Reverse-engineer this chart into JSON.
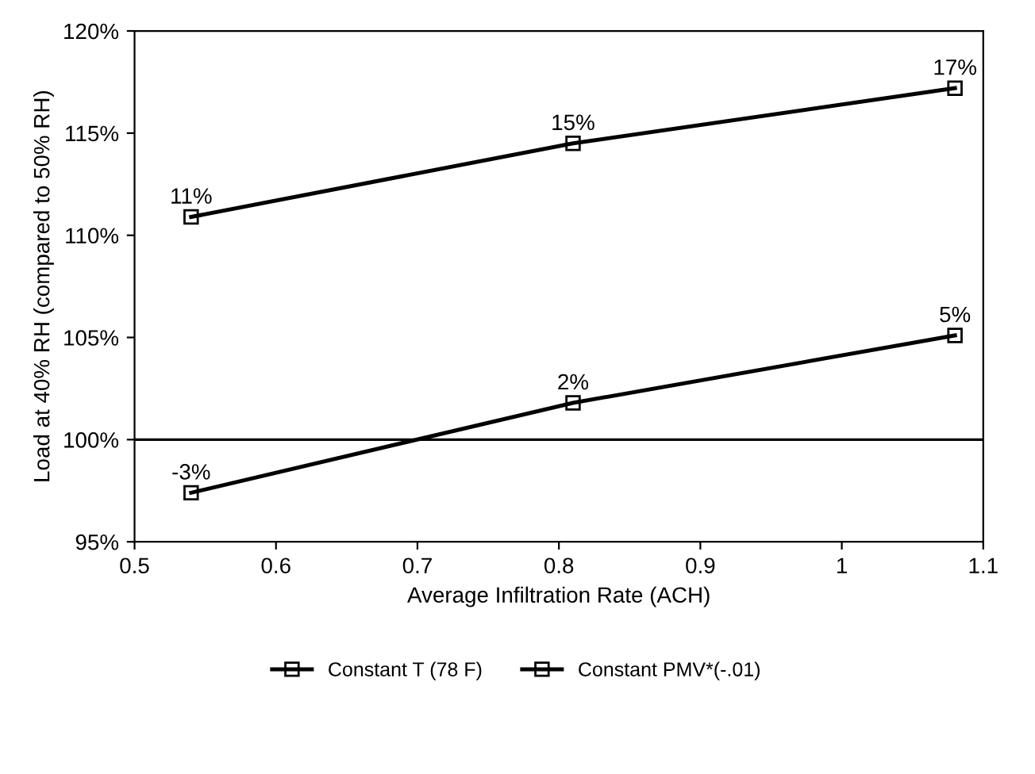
{
  "chart_data": {
    "type": "line",
    "xlabel": "Average Infiltration Rate (ACH)",
    "ylabel": "Load at 40% RH (compared to 50% RH)",
    "x": [
      0.54,
      0.81,
      1.08
    ],
    "series": [
      {
        "name": "Constant T (78 F)",
        "color": "#000000",
        "values": [
          110.9,
          114.5,
          117.2
        ]
      },
      {
        "name": "Constant PMV*(-.01)",
        "color": "#000000",
        "values": [
          97.4,
          101.8,
          105.1
        ]
      }
    ],
    "annotations": [
      {
        "text": "11%",
        "x": 0.54,
        "y": 110.9
      },
      {
        "text": "15%",
        "x": 0.81,
        "y": 114.5
      },
      {
        "text": "17%",
        "x": 1.08,
        "y": 117.2
      },
      {
        "text": "-3%",
        "x": 0.54,
        "y": 97.4
      },
      {
        "text": "2%",
        "x": 0.81,
        "y": 101.8
      },
      {
        "text": "5%",
        "x": 1.08,
        "y": 105.1
      }
    ],
    "xlim": [
      0.5,
      1.1
    ],
    "xticks": [
      0.5,
      0.6,
      0.7,
      0.8,
      0.9,
      1,
      1.1
    ],
    "ylim": [
      95,
      120
    ],
    "yticks": [
      {
        "value": 95,
        "label": "95%"
      },
      {
        "value": 100,
        "label": "100%"
      },
      {
        "value": 105,
        "label": "105%"
      },
      {
        "value": 110,
        "label": "110%"
      },
      {
        "value": 115,
        "label": "115%"
      },
      {
        "value": 120,
        "label": "120%"
      }
    ],
    "ref_lines": [
      {
        "axis": "y",
        "value": 100,
        "label": null,
        "color": "#000000"
      }
    ],
    "grid": false,
    "legend": "bottom",
    "marker": "square",
    "line_style": "solid"
  }
}
